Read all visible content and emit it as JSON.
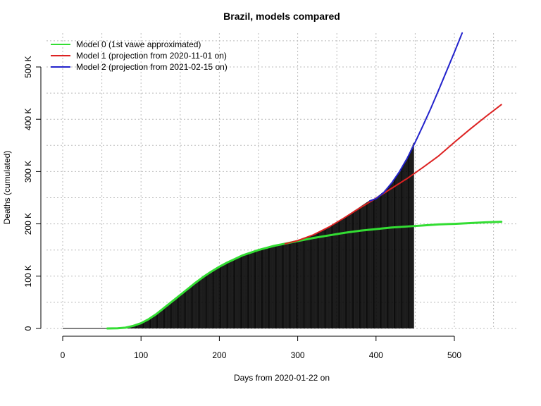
{
  "chart_data": {
    "type": "line",
    "title": "Brazil, models compared",
    "xlabel": "Days from 2020-01-22 on",
    "ylabel": "Deaths (cumulated)",
    "xlim": [
      0,
      565
    ],
    "ylim": [
      0,
      565000
    ],
    "x_ticks": [
      0,
      100,
      200,
      300,
      400,
      500
    ],
    "x_tick_labels": [
      "0",
      "100",
      "200",
      "300",
      "400",
      "500"
    ],
    "y_ticks": [
      0,
      100000,
      200000,
      300000,
      400000,
      500000
    ],
    "y_tick_labels": [
      "0",
      "100 K",
      "200 K",
      "300 K",
      "400 K",
      "500 K"
    ],
    "grid": true,
    "legend_position": "top-left",
    "observed": {
      "description_color": "#000000",
      "x_range": [
        0,
        448
      ],
      "points": [
        [
          0,
          0
        ],
        [
          40,
          0
        ],
        [
          55,
          0
        ],
        [
          70,
          300
        ],
        [
          80,
          1500
        ],
        [
          90,
          5000
        ],
        [
          100,
          10000
        ],
        [
          110,
          18000
        ],
        [
          120,
          28000
        ],
        [
          130,
          40000
        ],
        [
          140,
          52000
        ],
        [
          150,
          64000
        ],
        [
          160,
          76000
        ],
        [
          170,
          88000
        ],
        [
          180,
          99000
        ],
        [
          190,
          109000
        ],
        [
          200,
          118000
        ],
        [
          210,
          126000
        ],
        [
          220,
          133000
        ],
        [
          230,
          140000
        ],
        [
          240,
          145000
        ],
        [
          250,
          150000
        ],
        [
          260,
          154000
        ],
        [
          270,
          158000
        ],
        [
          280,
          161000
        ],
        [
          290,
          164000
        ],
        [
          300,
          168000
        ],
        [
          310,
          173000
        ],
        [
          320,
          179000
        ],
        [
          330,
          186000
        ],
        [
          340,
          194000
        ],
        [
          350,
          203000
        ],
        [
          360,
          213000
        ],
        [
          370,
          223000
        ],
        [
          380,
          233000
        ],
        [
          390,
          243000
        ],
        [
          400,
          250000
        ],
        [
          410,
          262000
        ],
        [
          420,
          280000
        ],
        [
          430,
          300000
        ],
        [
          440,
          326000
        ],
        [
          448,
          355000
        ]
      ]
    },
    "series": [
      {
        "name": "Model 0 (1st vawe approximated)",
        "color": "#33dd33",
        "points": [
          [
            57,
            0
          ],
          [
            70,
            300
          ],
          [
            80,
            1500
          ],
          [
            90,
            5000
          ],
          [
            100,
            10000
          ],
          [
            110,
            18000
          ],
          [
            120,
            28000
          ],
          [
            130,
            40000
          ],
          [
            140,
            52000
          ],
          [
            150,
            64000
          ],
          [
            160,
            76000
          ],
          [
            170,
            88000
          ],
          [
            180,
            99000
          ],
          [
            190,
            109000
          ],
          [
            200,
            118000
          ],
          [
            210,
            126000
          ],
          [
            220,
            133000
          ],
          [
            230,
            140000
          ],
          [
            240,
            145000
          ],
          [
            250,
            150000
          ],
          [
            260,
            154000
          ],
          [
            270,
            158000
          ],
          [
            280,
            161000
          ],
          [
            290,
            164000
          ],
          [
            300,
            167000
          ],
          [
            320,
            173000
          ],
          [
            340,
            178000
          ],
          [
            360,
            183000
          ],
          [
            380,
            187000
          ],
          [
            400,
            190000
          ],
          [
            420,
            193000
          ],
          [
            440,
            195000
          ],
          [
            460,
            197000
          ],
          [
            480,
            199000
          ],
          [
            500,
            200000
          ],
          [
            520,
            201500
          ],
          [
            540,
            203000
          ],
          [
            560,
            204000
          ]
        ]
      },
      {
        "name": "Model 1 (projection from 2020-11-01 on)",
        "color": "#dd2222",
        "points": [
          [
            284,
            162000
          ],
          [
            300,
            168000
          ],
          [
            320,
            179000
          ],
          [
            340,
            194000
          ],
          [
            360,
            212000
          ],
          [
            380,
            231000
          ],
          [
            400,
            249000
          ],
          [
            420,
            268000
          ],
          [
            440,
            287000
          ],
          [
            460,
            308000
          ],
          [
            480,
            330000
          ],
          [
            500,
            356000
          ],
          [
            520,
            381000
          ],
          [
            540,
            405000
          ],
          [
            560,
            428000
          ]
        ]
      },
      {
        "name": "Model 2 (projection from 2021-02-15 on)",
        "color": "#2222cc",
        "points": [
          [
            392,
            244000
          ],
          [
            400,
            248000
          ],
          [
            410,
            260000
          ],
          [
            420,
            278000
          ],
          [
            430,
            300000
          ],
          [
            440,
            326000
          ],
          [
            450,
            356000
          ],
          [
            460,
            388000
          ],
          [
            470,
            421000
          ],
          [
            480,
            456000
          ],
          [
            490,
            492000
          ],
          [
            500,
            528000
          ],
          [
            510,
            565000
          ]
        ]
      }
    ]
  }
}
